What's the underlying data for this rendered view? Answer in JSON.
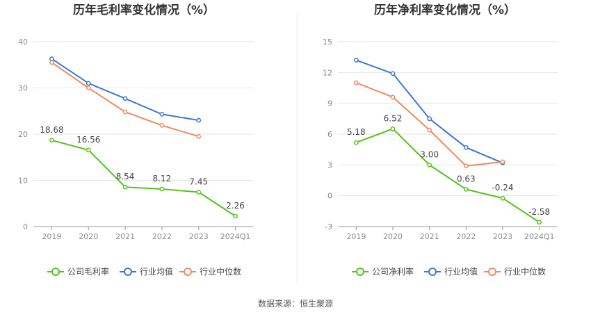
{
  "chart_data": [
    {
      "type": "line",
      "title": "历年毛利率变化情况（%）",
      "categories": [
        "2019",
        "2020",
        "2021",
        "2022",
        "2023",
        "2024Q1"
      ],
      "ylim": [
        0,
        40
      ],
      "yticks": [
        "0",
        "10",
        "20",
        "30",
        "40"
      ],
      "grid": true,
      "legend_position": "bottom",
      "series": [
        {
          "name": "公司毛利率",
          "color": "#52c41a",
          "values": [
            18.68,
            16.56,
            8.54,
            8.12,
            7.45,
            2.26
          ],
          "labels": [
            "18.68",
            "16.56",
            "8.54",
            "8.12",
            "7.45",
            "2.26"
          ]
        },
        {
          "name": "行业均值",
          "color": "#3a77d8",
          "values": [
            36.3,
            31.0,
            27.7,
            24.3,
            23.0,
            null
          ]
        },
        {
          "name": "行业中位数",
          "color": "#f08a5d",
          "values": [
            35.5,
            30.0,
            24.8,
            21.9,
            19.5,
            null
          ]
        }
      ]
    },
    {
      "type": "line",
      "title": "历年净利率变化情况（%）",
      "categories": [
        "2019",
        "2020",
        "2021",
        "2022",
        "2023",
        "2024Q1"
      ],
      "ylim": [
        -3,
        15
      ],
      "yticks": [
        "-3",
        "0",
        "3",
        "6",
        "9",
        "12",
        "15"
      ],
      "grid": true,
      "legend_position": "bottom",
      "series": [
        {
          "name": "公司净利率",
          "color": "#52c41a",
          "values": [
            5.18,
            6.52,
            3.0,
            0.63,
            -0.24,
            -2.58
          ],
          "labels": [
            "5.18",
            "6.52",
            "3.00",
            "0.63",
            "-0.24",
            "-2.58"
          ]
        },
        {
          "name": "行业均值",
          "color": "#3a77d8",
          "values": [
            13.2,
            11.9,
            7.5,
            4.7,
            3.2,
            null
          ]
        },
        {
          "name": "行业中位数",
          "color": "#f08a5d",
          "values": [
            11.0,
            9.6,
            6.4,
            2.9,
            3.3,
            null
          ]
        }
      ]
    }
  ],
  "footer": {
    "source": "数据来源：恒生聚源"
  }
}
